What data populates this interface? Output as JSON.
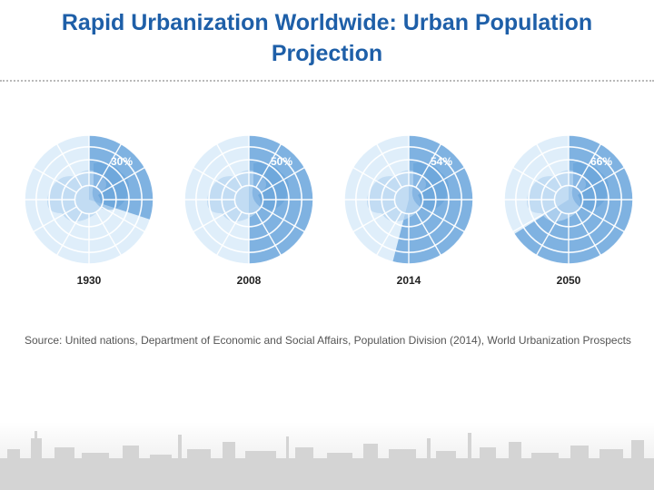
{
  "title": "Rapid Urbanization Worldwide: Urban Population Projection",
  "source": "Source: United nations, Department of Economic and Social Affairs, Population Division (2014), World Urbanization Prospects",
  "chart_data": {
    "type": "pie",
    "charts": [
      {
        "year": "1930",
        "urban_percent": 30,
        "label": "30%"
      },
      {
        "year": "2008",
        "urban_percent": 50,
        "label": "50%"
      },
      {
        "year": "2014",
        "urban_percent": 54,
        "label": "54%"
      },
      {
        "year": "2050",
        "urban_percent": 66,
        "label": "66%"
      }
    ],
    "colors": {
      "urban": "#7fb2e1",
      "rural": "#dfeefa",
      "grid": "#ffffff",
      "land_light": "#b8d5f0",
      "land_dark": "#5d9bd6",
      "label": "#ffffff",
      "year": "#222222"
    }
  }
}
